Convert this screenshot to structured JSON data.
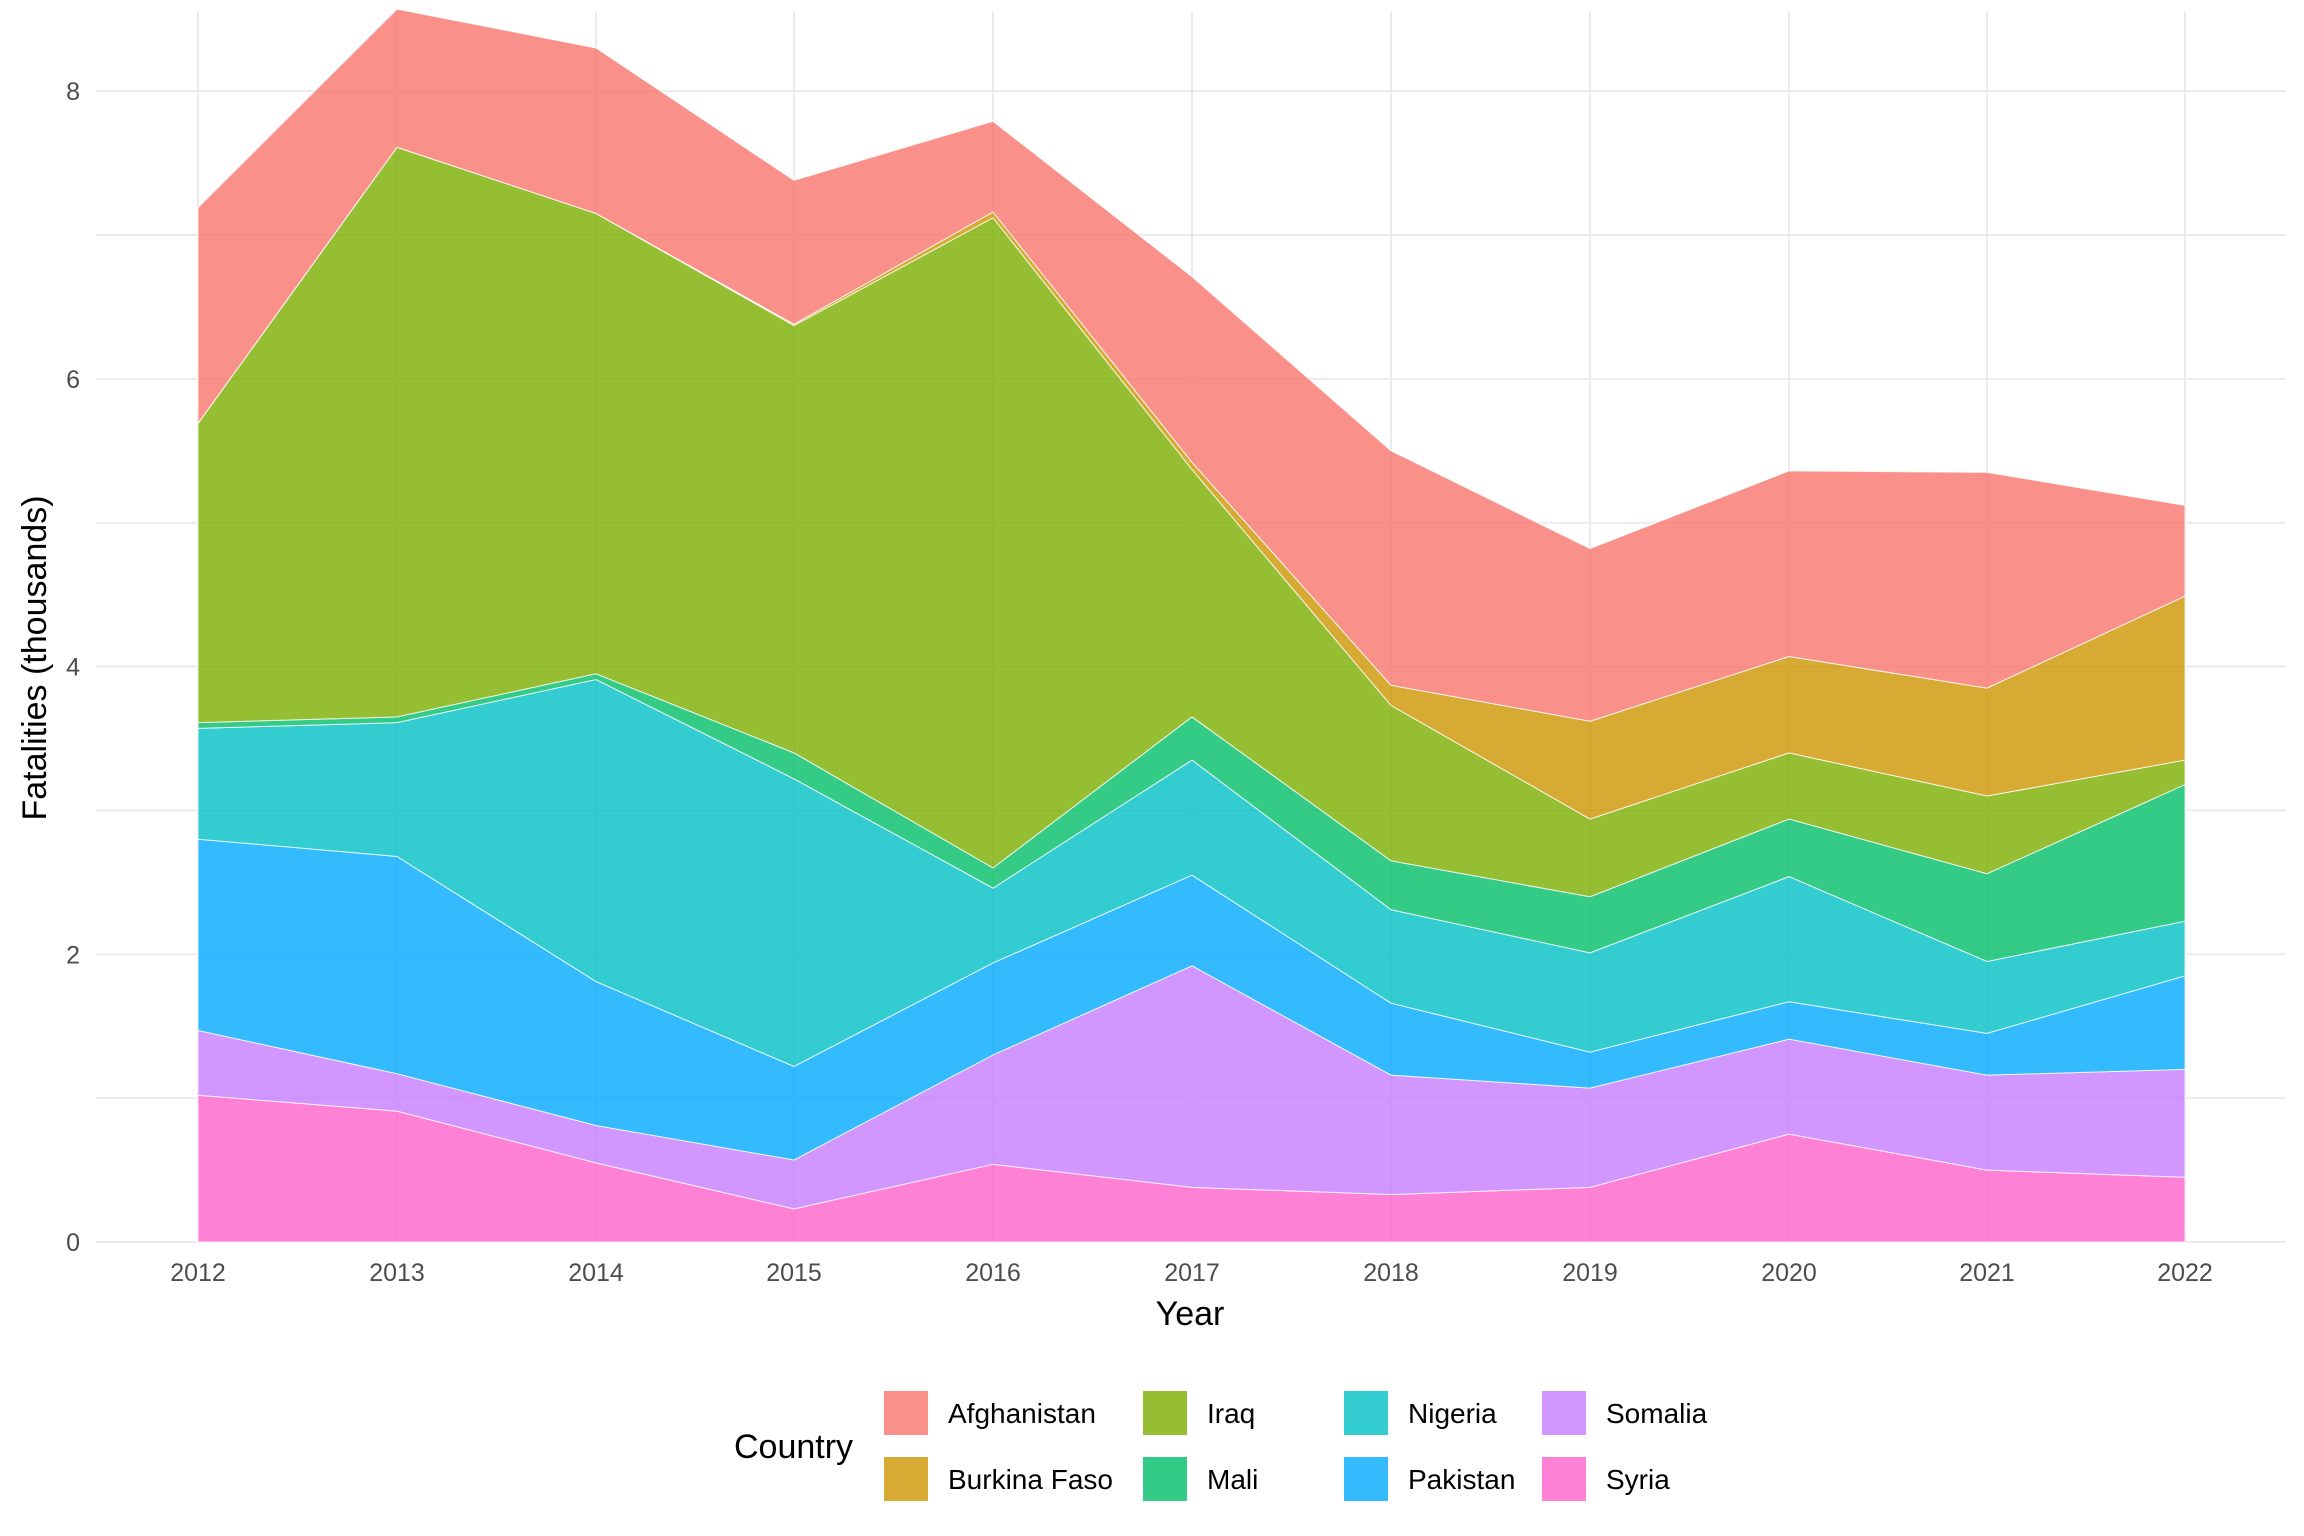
{
  "chart_data": {
    "type": "area",
    "stacked": true,
    "title": "",
    "xlabel": "Year",
    "ylabel": "Fatalities (thousands)",
    "x": [
      2012,
      2013,
      2014,
      2015,
      2016,
      2017,
      2018,
      2019,
      2020,
      2021,
      2022
    ],
    "x_tick_labels": [
      "2012",
      "2013",
      "2014",
      "2015",
      "2016",
      "2017",
      "2018",
      "2019",
      "2020",
      "2021",
      "2022"
    ],
    "y_ticks": [
      0,
      2,
      4,
      6,
      8
    ],
    "y_tick_labels": [
      "0",
      "2",
      "4",
      "6",
      "8"
    ],
    "ylim": [
      0,
      8.55
    ],
    "grid": true,
    "legend": {
      "title": "Country",
      "position": "bottom"
    },
    "stack_order_bottom_to_top": [
      "Syria",
      "Somalia",
      "Pakistan",
      "Nigeria",
      "Mali",
      "Iraq",
      "Burkina Faso",
      "Afghanistan"
    ],
    "series": [
      {
        "name": "Afghanistan",
        "color": "#F8766D",
        "values": [
          1.5,
          0.96,
          1.15,
          1.0,
          0.63,
          1.29,
          1.63,
          1.2,
          1.29,
          1.5,
          0.63
        ]
      },
      {
        "name": "Burkina Faso",
        "color": "#CD9600",
        "values": [
          0.0,
          0.0,
          0.0,
          0.01,
          0.04,
          0.05,
          0.14,
          0.68,
          0.67,
          0.75,
          1.14
        ]
      },
      {
        "name": "Iraq",
        "color": "#7CAE00",
        "values": [
          2.08,
          3.96,
          3.2,
          2.97,
          4.52,
          1.72,
          1.08,
          0.54,
          0.46,
          0.54,
          0.17
        ]
      },
      {
        "name": "Mali",
        "color": "#00BE67",
        "values": [
          0.04,
          0.04,
          0.04,
          0.18,
          0.14,
          0.3,
          0.34,
          0.39,
          0.4,
          0.61,
          0.95
        ]
      },
      {
        "name": "Nigeria",
        "color": "#00BFC4",
        "values": [
          0.77,
          0.93,
          2.1,
          2.0,
          0.52,
          0.8,
          0.65,
          0.69,
          0.87,
          0.5,
          0.38
        ]
      },
      {
        "name": "Pakistan",
        "color": "#00A9FF",
        "values": [
          1.33,
          1.51,
          1.0,
          0.65,
          0.64,
          0.63,
          0.5,
          0.25,
          0.26,
          0.29,
          0.65
        ]
      },
      {
        "name": "Somalia",
        "color": "#C77CFF",
        "values": [
          0.45,
          0.26,
          0.26,
          0.34,
          0.76,
          1.54,
          0.83,
          0.69,
          0.66,
          0.66,
          0.75
        ]
      },
      {
        "name": "Syria",
        "color": "#FF61CC",
        "values": [
          1.02,
          0.91,
          0.55,
          0.23,
          0.54,
          0.38,
          0.33,
          0.38,
          0.75,
          0.5,
          0.45
        ]
      }
    ]
  },
  "legend_layout": [
    [
      "Afghanistan",
      "Iraq",
      "Nigeria",
      "Somalia"
    ],
    [
      "Burkina Faso",
      "Mali",
      "Pakistan",
      "Syria"
    ]
  ]
}
